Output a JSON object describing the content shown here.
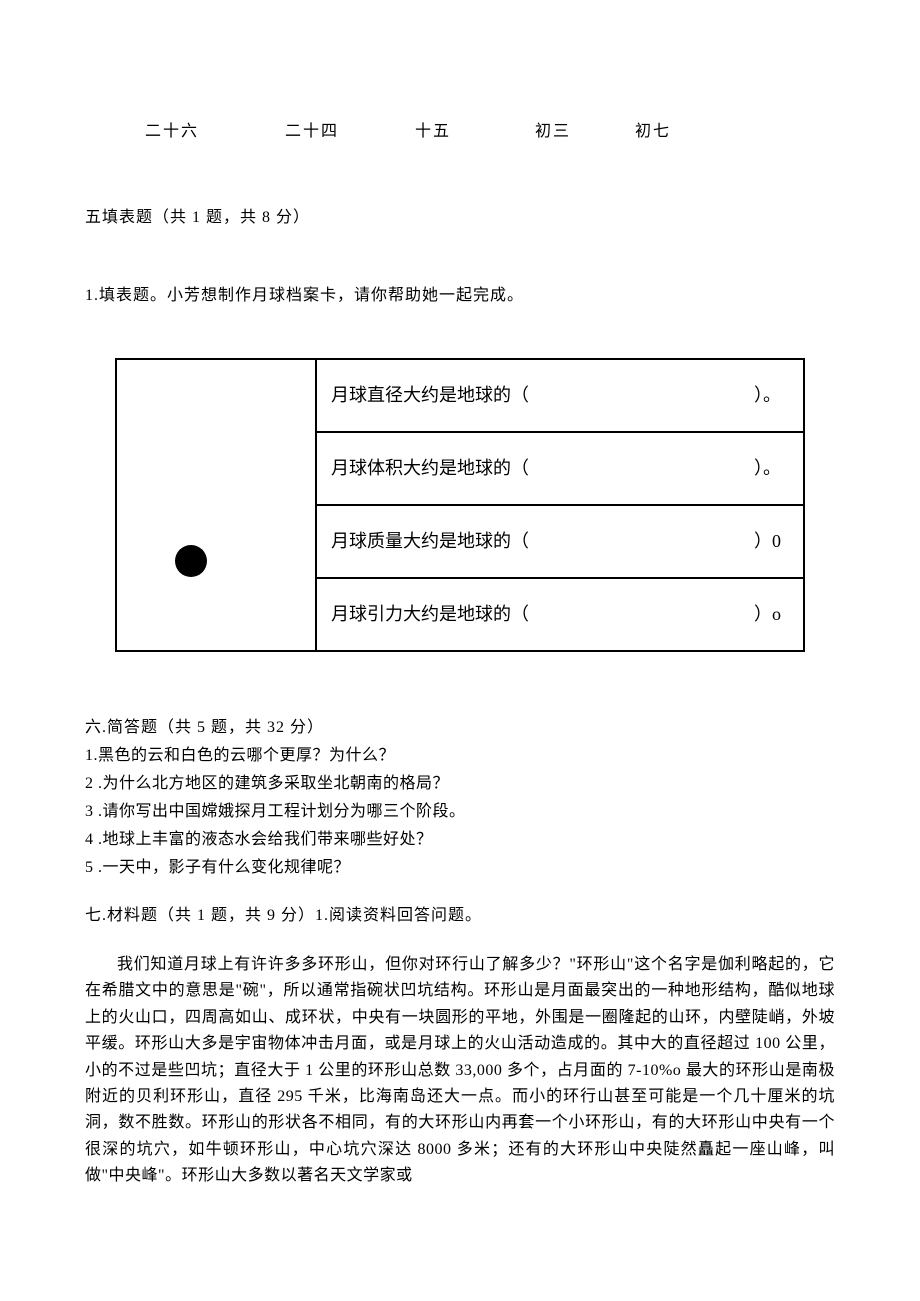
{
  "lunar_dates": [
    "二十六",
    "二十四",
    "十五",
    "初三",
    "初七"
  ],
  "section5": {
    "header": "五填表题（共 1 题，共 8 分）",
    "question_intro": "1.填表题。小芳想制作月球档案卡，请你帮助她一起完成。",
    "table_rows": [
      {
        "label": "月球直径大约是地球的（",
        "tail": "）。"
      },
      {
        "label": "月球体积大约是地球的（",
        "tail": "）。"
      },
      {
        "label": "月球质量大约是地球的（",
        "tail": "）0"
      },
      {
        "label": "月球引力大约是地球的（",
        "tail": "）o"
      }
    ]
  },
  "section6": {
    "header": "六.简答题（共 5 题，共 32 分）",
    "questions": [
      "1.黑色的云和白色的云哪个更厚？为什么？",
      "2 .为什么北方地区的建筑多采取坐北朝南的格局？",
      "3 .请你写出中国嫦娥探月工程计划分为哪三个阶段。",
      "4 .地球上丰富的液态水会给我们带来哪些好处？",
      "5 .一天中，影子有什么变化规律呢？"
    ]
  },
  "section7": {
    "header": "七.材料题（共 1 题，共 9 分）1.阅读资料回答问题。",
    "passage": "我们知道月球上有许许多多环形山，但你对环行山了解多少？\"环形山\"这个名字是伽利略起的，它在希腊文中的意思是\"碗\"，所以通常指碗状凹坑结构。环形山是月面最突出的一种地形结构，酷似地球上的火山口，四周高如山、成环状，中央有一块圆形的平地，外围是一圈隆起的山环，内壁陡峭，外坡平缓。环形山大多是宇宙物体冲击月面，或是月球上的火山活动造成的。其中大的直径超过 100 公里，小的不过是些凹坑；直径大于 1 公里的环形山总数 33,000 多个，占月面的 7-10%o 最大的环形山是南极附近的贝利环形山，直径 295 千米，比海南岛还大一点。而小的环行山甚至可能是一个几十厘米的坑洞，数不胜数。环形山的形状各不相同，有的大环形山内再套一个小环形山，有的大环形山中央有一个很深的坑穴，如牛顿环形山，中心坑穴深达 8000 多米；还有的大环形山中央陡然矗起一座山峰，叫做\"中央峰\"。环形山大多数以著名天文学家或"
  }
}
